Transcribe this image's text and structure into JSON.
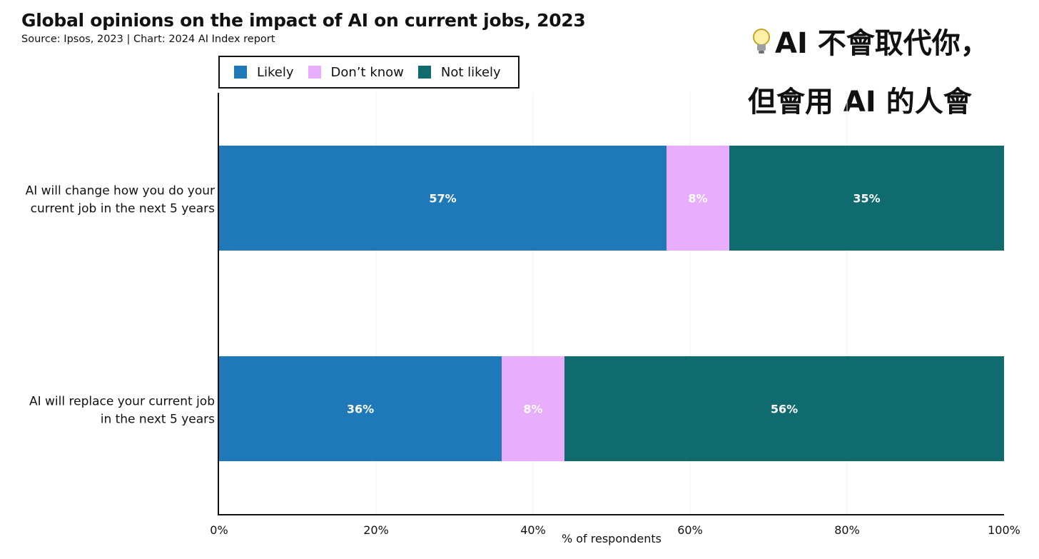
{
  "title": "Global opinions on the impact of AI on current jobs, 2023",
  "subtitle": "Source: Ipsos, 2023 | Chart: 2024 AI Index report",
  "overlay": {
    "line1": "AI 不會取代你，",
    "line2": "但會用 AI 的人會",
    "icon": "lightbulb-icon"
  },
  "colors": {
    "likely": "#1f78b8",
    "dont_know": "#e8adfc",
    "not_likely": "#106b6e"
  },
  "legend": [
    {
      "key": "likely",
      "label": "Likely"
    },
    {
      "key": "dont_know",
      "label": "Don’t know"
    },
    {
      "key": "not_likely",
      "label": "Not likely"
    }
  ],
  "chart_data": {
    "type": "bar",
    "orientation": "horizontal",
    "stacked": true,
    "title": "Global opinions on the impact of AI on current jobs, 2023",
    "xlabel": "% of respondents",
    "ylabel": "",
    "xlim": [
      0,
      100
    ],
    "x_ticks": [
      "0%",
      "20%",
      "40%",
      "60%",
      "80%",
      "100%"
    ],
    "categories": [
      [
        "AI will change how you do your",
        "current job in the next 5 years"
      ],
      [
        "AI will replace your current job",
        "in the next 5 years"
      ]
    ],
    "series": [
      {
        "name": "Likely",
        "key": "likely",
        "values": [
          57,
          36
        ]
      },
      {
        "name": "Don’t know",
        "key": "dont_know",
        "values": [
          8,
          8
        ]
      },
      {
        "name": "Not likely",
        "key": "not_likely",
        "values": [
          35,
          56
        ]
      }
    ],
    "legend_position": "top-left",
    "grid": true
  }
}
